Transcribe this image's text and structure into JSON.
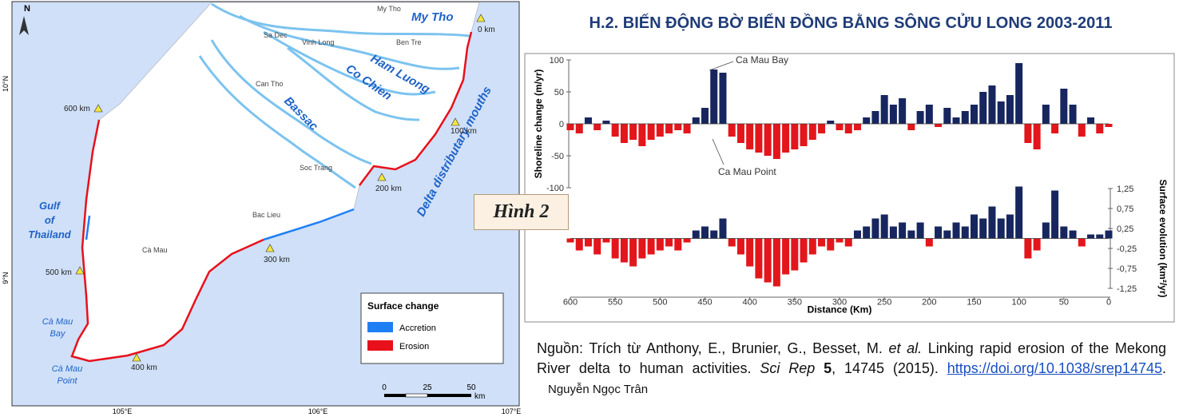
{
  "map": {
    "north": "N",
    "places": {
      "my_tho": "My Tho",
      "sa_dec": "Sa Dec",
      "vinh_long": "Vinh Long",
      "ben_tre": "Ben Tre",
      "can_tho": "Can Tho",
      "soc_trang": "Soc Trang",
      "bac_lieu": "Bac Lieu",
      "ca_mau": "Cà Mau"
    },
    "rivers": {
      "my_tho": "My Tho",
      "ham_luong": "Ham Luong",
      "co_chien": "Co Chien",
      "bassac": "Bassac",
      "mouths": "Delta distributary mouths"
    },
    "sea": [
      "Gulf",
      "of",
      "Thailand"
    ],
    "bay": [
      "Cà Mau",
      "Bay"
    ],
    "point": [
      "Cà Mau",
      "Point"
    ],
    "km_marks": [
      "0 km",
      "100 km",
      "200 km",
      "300 km",
      "400 km",
      "500 km",
      "600 km"
    ],
    "legend": {
      "title": "Surface change",
      "items": [
        {
          "name": "Accretion",
          "color": "#1e7ff5"
        },
        {
          "name": "Erosion",
          "color": "#e8101a"
        }
      ]
    },
    "scale": {
      "ticks": [
        "0",
        "25",
        "50"
      ],
      "unit": "km"
    },
    "lon": [
      "105°E",
      "106°E",
      "107°E"
    ],
    "lat": [
      "10°N",
      "9°N"
    ]
  },
  "title": "H.2. BIẾN ĐỘNG BỜ BIỂN ĐỒNG BẰNG SÔNG CỬU LONG 2003-2011",
  "figure_label": "Hình 2",
  "chart_data": [
    {
      "type": "bar",
      "y_label": "Shoreline change (m/yr)",
      "annotations": [
        "Ca Mau Bay",
        "Ca Mau Point"
      ],
      "colors": {
        "positive": "#17265e",
        "negative": "#e3161b"
      },
      "x": [
        600,
        590,
        580,
        570,
        560,
        550,
        540,
        530,
        520,
        510,
        500,
        490,
        480,
        470,
        460,
        450,
        440,
        430,
        420,
        410,
        400,
        390,
        380,
        370,
        360,
        350,
        340,
        330,
        320,
        310,
        300,
        290,
        280,
        270,
        260,
        250,
        240,
        230,
        220,
        210,
        200,
        190,
        180,
        170,
        160,
        150,
        140,
        130,
        120,
        110,
        100,
        90,
        80,
        70,
        60,
        50,
        40,
        30,
        20,
        10,
        0
      ],
      "values": [
        -10,
        -15,
        10,
        -10,
        5,
        -20,
        -30,
        -25,
        -35,
        -25,
        -20,
        -15,
        -10,
        -15,
        10,
        25,
        85,
        80,
        -20,
        -30,
        -40,
        -45,
        -50,
        -55,
        -45,
        -40,
        -35,
        -25,
        -15,
        5,
        -10,
        -15,
        -10,
        10,
        20,
        45,
        30,
        40,
        -10,
        20,
        30,
        -5,
        25,
        10,
        20,
        30,
        50,
        60,
        35,
        45,
        95,
        -30,
        -40,
        30,
        -15,
        55,
        30,
        -20,
        10,
        -15,
        -5
      ],
      "xlim": [
        600,
        0
      ],
      "xticks": [
        600,
        550,
        500,
        450,
        400,
        350,
        300,
        250,
        200,
        150,
        100,
        50,
        0
      ],
      "ylim": [
        -100,
        100
      ],
      "yticks": [
        -100,
        -50,
        0,
        50,
        100
      ],
      "y_axis": "left"
    },
    {
      "type": "bar",
      "x_label": "Distance (Km)",
      "y_label": "Surface evolution (km²/yr)",
      "colors": {
        "positive": "#17265e",
        "negative": "#e3161b"
      },
      "x": [
        600,
        590,
        580,
        570,
        560,
        550,
        540,
        530,
        520,
        510,
        500,
        490,
        480,
        470,
        460,
        450,
        440,
        430,
        420,
        410,
        400,
        390,
        380,
        370,
        360,
        350,
        340,
        330,
        320,
        310,
        300,
        290,
        280,
        270,
        260,
        250,
        240,
        230,
        220,
        210,
        200,
        190,
        180,
        170,
        160,
        150,
        140,
        130,
        120,
        110,
        100,
        90,
        80,
        70,
        60,
        50,
        40,
        30,
        20,
        10,
        0
      ],
      "values": [
        -0.1,
        -0.3,
        -0.2,
        -0.4,
        -0.1,
        -0.5,
        -0.6,
        -0.7,
        -0.5,
        -0.4,
        -0.3,
        -0.2,
        -0.3,
        -0.1,
        0.2,
        0.3,
        0.2,
        0.5,
        -0.2,
        -0.4,
        -0.7,
        -1.0,
        -1.1,
        -1.2,
        -0.9,
        -0.8,
        -0.6,
        -0.4,
        -0.2,
        -0.3,
        -0.1,
        -0.2,
        0.2,
        0.3,
        0.5,
        0.6,
        0.3,
        0.4,
        0.2,
        0.4,
        -0.2,
        0.3,
        0.2,
        0.4,
        0.3,
        0.6,
        0.5,
        0.8,
        0.5,
        0.6,
        1.3,
        -0.5,
        -0.3,
        0.4,
        1.2,
        0.3,
        0.2,
        -0.2,
        0.1,
        0.1,
        0.2
      ],
      "xlim": [
        600,
        0
      ],
      "xticks": [
        600,
        550,
        500,
        450,
        400,
        350,
        300,
        250,
        200,
        150,
        100,
        50,
        0
      ],
      "ylim": [
        -1.5,
        1.5
      ],
      "yticks": [
        {
          "value": 1.25,
          "label": "1,25"
        },
        {
          "value": 0.75,
          "label": "0,75"
        },
        {
          "value": 0.25,
          "label": "0,25"
        },
        {
          "value": -0.25,
          "label": "-0,25"
        },
        {
          "value": -0.75,
          "label": "-0,75"
        },
        {
          "value": -1.25,
          "label": "-1,25"
        }
      ],
      "y_axis": "right"
    }
  ],
  "source": {
    "lead": "Nguồn: Trích từ Anthony, E., Brunier, G., Besset, M.",
    "etal": "et al.",
    "article": "Linking rapid erosion of the Mekong River delta to human activities.",
    "journal": "Sci Rep",
    "volume": "5",
    "pages": ", 14745 (2015).",
    "link": "https://doi.org/10.1038/srep14745",
    "end": ".",
    "author": "Nguyễn Ngọc Trân"
  }
}
